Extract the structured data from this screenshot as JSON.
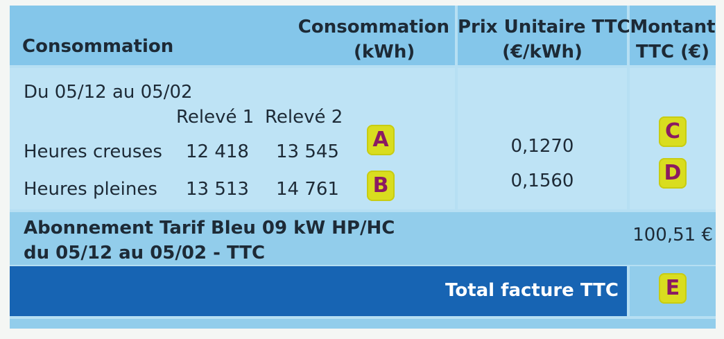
{
  "header": {
    "col1": "Consommation",
    "col2_line1": "Consommation",
    "col2_line2": "(kWh)",
    "col3_line1": "Prix Unitaire TTC",
    "col3_line2": "(€/kWh)",
    "col4_line1": "Montant",
    "col4_line2": "TTC (€)"
  },
  "period": "Du 05/12 au 05/02",
  "readings_headers": [
    "Relevé 1",
    "Relevé 2"
  ],
  "rows": [
    {
      "label": "Heures creuses",
      "releve1": "12 418",
      "releve2": "13 545",
      "badge_conso": "A",
      "price": "0,1270",
      "badge_montant": "C"
    },
    {
      "label": "Heures pleines",
      "releve1": "13 513",
      "releve2": "14 761",
      "badge_conso": "B",
      "price": "0,1560",
      "badge_montant": "D"
    }
  ],
  "abonnement": {
    "line1": "Abonnement Tarif Bleu 09 kW HP/HC",
    "line2": "du 05/12 au 05/02 - TTC",
    "amount": "100,51 €"
  },
  "total": {
    "label": "Total facture TTC",
    "badge": "E"
  },
  "colors": {
    "header_bg": "#84c6ea",
    "body_bg": "#bee3f5",
    "total_bg": "#1764b3",
    "badge_bg": "#d9dd1f",
    "badge_text": "#8b1a62"
  }
}
